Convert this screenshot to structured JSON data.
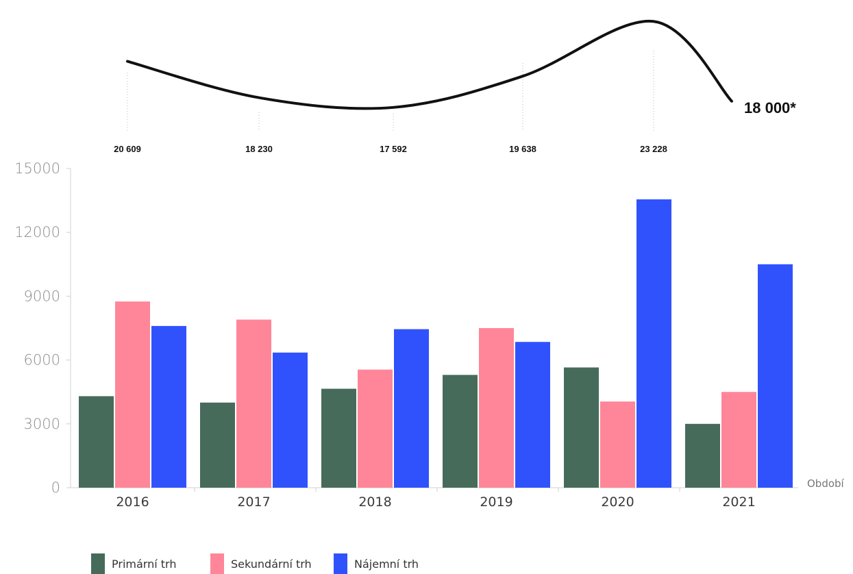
{
  "chart_data": [
    {
      "type": "line",
      "x": [
        "2016",
        "2017",
        "2018",
        "2019",
        "2020",
        "2021"
      ],
      "values": [
        20609,
        18230,
        17592,
        19638,
        23228,
        18000
      ],
      "point_labels": [
        "20 609",
        "18 230",
        "17 592",
        "19 638",
        "23 228",
        "18 000*"
      ],
      "color": "#111111"
    },
    {
      "type": "bar",
      "categories": [
        "2016",
        "2017",
        "2018",
        "2019",
        "2020",
        "2021"
      ],
      "xlabel": "Období",
      "ylabel": "",
      "ylim": [
        0,
        15000
      ],
      "yticks": [
        "0",
        "3000",
        "6000",
        "9000",
        "12000",
        "15000"
      ],
      "grid": false,
      "legend_position": "bottom-left",
      "series": [
        {
          "name": "Primární trh",
          "color": "#466b5b",
          "values": [
            4300,
            4000,
            4650,
            5300,
            5650,
            3000
          ]
        },
        {
          "name": "Sekundární trh",
          "color": "#ff8698",
          "values": [
            8750,
            7900,
            5550,
            7500,
            4050,
            4500
          ]
        },
        {
          "name": "Nájemní trh",
          "color": "#3052fd",
          "values": [
            7600,
            6350,
            7450,
            6850,
            13550,
            10500
          ]
        }
      ]
    }
  ]
}
